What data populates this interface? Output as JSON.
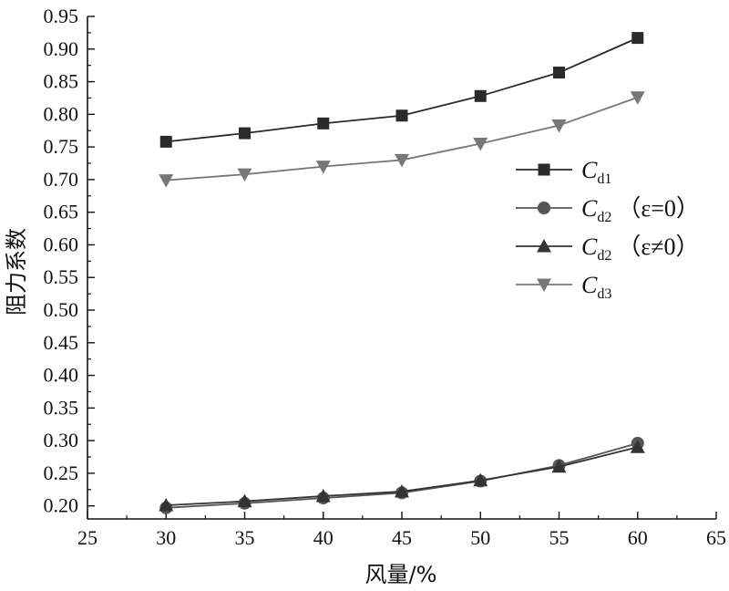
{
  "chart_data": {
    "type": "line",
    "xlabel": "风量/%",
    "ylabel": "阻力系数",
    "xlim": [
      25,
      65
    ],
    "ylim": [
      0.18,
      0.95
    ],
    "xticks": [
      25,
      30,
      35,
      40,
      45,
      50,
      55,
      60,
      65
    ],
    "yticks": [
      0.2,
      0.25,
      0.3,
      0.35,
      0.4,
      0.45,
      0.5,
      0.55,
      0.6,
      0.65,
      0.7,
      0.75,
      0.8,
      0.85,
      0.9,
      0.95
    ],
    "x": [
      30,
      35,
      40,
      45,
      50,
      55,
      60
    ],
    "grid": false,
    "legend_position": "right",
    "series": [
      {
        "name": "C_d1",
        "label_main": "C",
        "label_sub": "d1",
        "label_suffix": "",
        "marker": "square",
        "color": "#2a2a2a",
        "values": [
          0.758,
          0.771,
          0.786,
          0.798,
          0.828,
          0.864,
          0.917
        ]
      },
      {
        "name": "C_d2 (ε=0)",
        "label_main": "C",
        "label_sub": "d2",
        "label_suffix": "（ε=0）",
        "marker": "circle",
        "color": "#555555",
        "values": [
          0.197,
          0.204,
          0.212,
          0.22,
          0.238,
          0.262,
          0.296
        ]
      },
      {
        "name": "C_d2 (ε≠0)",
        "label_main": "C",
        "label_sub": "d2",
        "label_suffix": "（ε≠0）",
        "marker": "triangle-up",
        "color": "#333333",
        "values": [
          0.201,
          0.207,
          0.215,
          0.222,
          0.239,
          0.26,
          0.29
        ]
      },
      {
        "name": "C_d3",
        "label_main": "C",
        "label_sub": "d3",
        "label_suffix": "",
        "marker": "triangle-down",
        "color": "#777777",
        "values": [
          0.699,
          0.708,
          0.72,
          0.73,
          0.755,
          0.783,
          0.826
        ]
      }
    ]
  }
}
